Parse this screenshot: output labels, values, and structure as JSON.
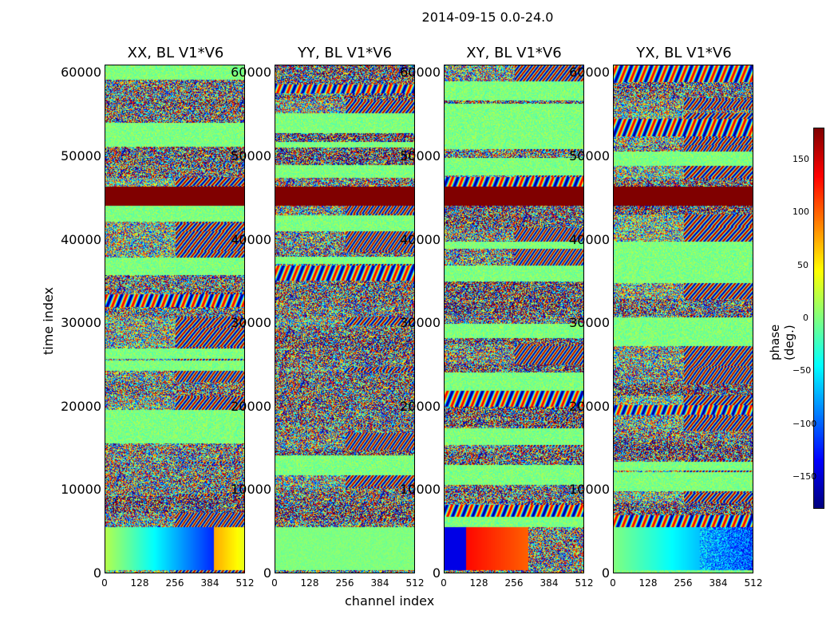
{
  "chart_data": {
    "type": "heatmap",
    "title": "2014-09-15 0.0-24.0",
    "xlabel": "channel index",
    "ylabel": "time index",
    "x_ticks": [
      "0",
      "128",
      "256",
      "384",
      "512"
    ],
    "y_ticks": [
      "0",
      "10000",
      "20000",
      "30000",
      "40000",
      "50000",
      "60000"
    ],
    "xlim": [
      0,
      512
    ],
    "ylim": [
      0,
      61000
    ],
    "panels": [
      {
        "title": "XX, BL V1*V6",
        "style": "xx"
      },
      {
        "title": "YY, BL V1*V6",
        "style": "yy"
      },
      {
        "title": "XY, BL V1*V6",
        "style": "xy"
      },
      {
        "title": "YX, BL V1*V6",
        "style": "yx"
      }
    ],
    "colorbar": {
      "label": "phase (deg.)",
      "range": [
        -180,
        180
      ],
      "ticks": [
        "150",
        "100",
        "50",
        "0",
        "−50",
        "−100",
        "−150"
      ],
      "colormap": "jet"
    }
  }
}
